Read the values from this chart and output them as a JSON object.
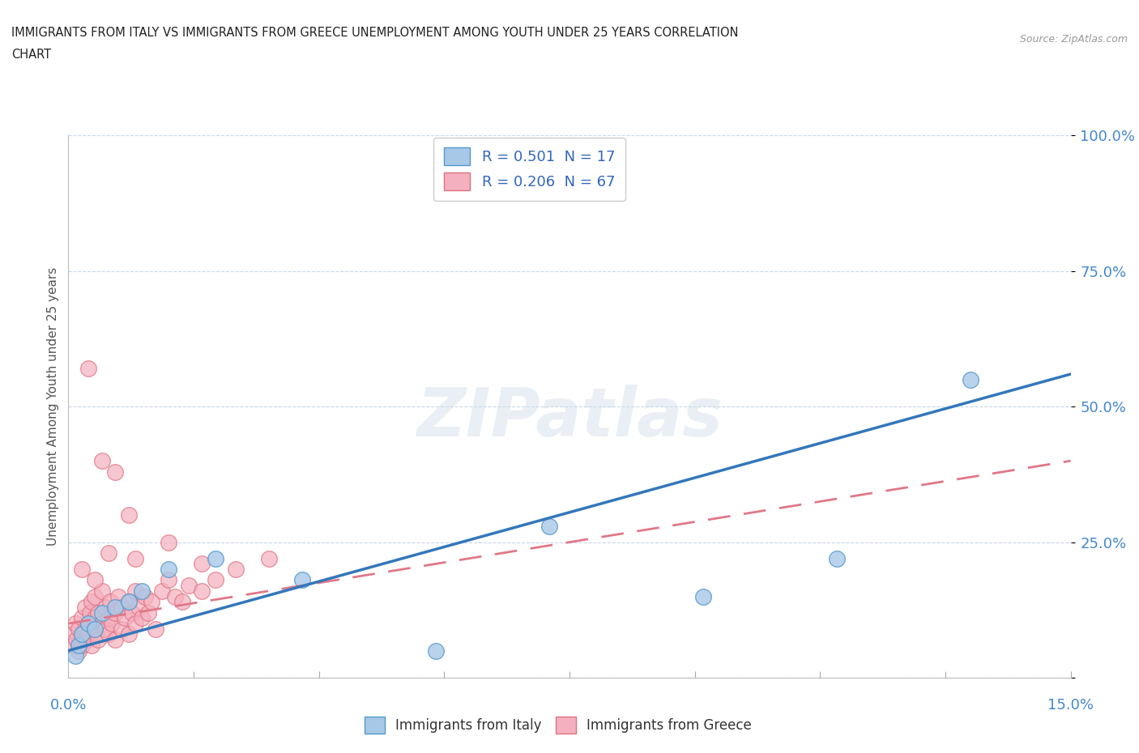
{
  "title_line1": "IMMIGRANTS FROM ITALY VS IMMIGRANTS FROM GREECE UNEMPLOYMENT AMONG YOUTH UNDER 25 YEARS CORRELATION",
  "title_line2": "CHART",
  "source": "Source: ZipAtlas.com",
  "ylabel": "Unemployment Among Youth under 25 years",
  "xlim": [
    0.0,
    15.0
  ],
  "ylim": [
    0.0,
    100.0
  ],
  "yticks": [
    0,
    25,
    50,
    75,
    100
  ],
  "ytick_labels": [
    "",
    "25.0%",
    "50.0%",
    "75.0%",
    "100.0%"
  ],
  "italy_color": "#a8c8e8",
  "greece_color": "#f4b0be",
  "italy_edge_color": "#5599cc",
  "greece_edge_color": "#e07080",
  "italy_line_color": "#3377bb",
  "greece_line_color": "#e07888",
  "legend_italy_label": "R = 0.501  N = 17",
  "legend_greece_label": "R = 0.206  N = 67",
  "watermark": "ZIPatlas",
  "background_color": "#ffffff",
  "italy_x": [
    0.1,
    0.15,
    0.2,
    0.3,
    0.4,
    0.5,
    0.7,
    0.9,
    1.1,
    1.5,
    2.2,
    3.5,
    5.5,
    7.2,
    9.5,
    11.5,
    13.5
  ],
  "italy_y": [
    4,
    6,
    8,
    10,
    9,
    12,
    13,
    14,
    16,
    20,
    22,
    18,
    5,
    28,
    15,
    22,
    55
  ],
  "greece_x": [
    0.05,
    0.08,
    0.1,
    0.12,
    0.15,
    0.15,
    0.2,
    0.2,
    0.22,
    0.25,
    0.25,
    0.28,
    0.3,
    0.3,
    0.32,
    0.35,
    0.35,
    0.38,
    0.4,
    0.4,
    0.42,
    0.45,
    0.45,
    0.5,
    0.5,
    0.55,
    0.55,
    0.6,
    0.6,
    0.62,
    0.65,
    0.7,
    0.7,
    0.75,
    0.8,
    0.8,
    0.85,
    0.9,
    0.9,
    0.95,
    1.0,
    1.0,
    1.05,
    1.1,
    1.15,
    1.2,
    1.25,
    1.3,
    1.4,
    1.5,
    1.6,
    1.7,
    1.8,
    2.0,
    2.2,
    2.5,
    0.3,
    0.5,
    0.7,
    0.9,
    1.0,
    1.5,
    2.0,
    3.0,
    0.2,
    0.4,
    0.6
  ],
  "greece_y": [
    8,
    6,
    10,
    7,
    9,
    5,
    6,
    11,
    8,
    9,
    13,
    7,
    10,
    8,
    12,
    6,
    14,
    9,
    11,
    15,
    8,
    12,
    7,
    10,
    16,
    9,
    13,
    11,
    8,
    14,
    10,
    12,
    7,
    15,
    9,
    13,
    11,
    14,
    8,
    12,
    10,
    16,
    13,
    11,
    15,
    12,
    14,
    9,
    16,
    18,
    15,
    14,
    17,
    16,
    18,
    20,
    57,
    40,
    38,
    30,
    22,
    25,
    21,
    22,
    20,
    18,
    23
  ],
  "italy_trendline_x": [
    0,
    15
  ],
  "italy_trendline_y": [
    5,
    56
  ],
  "greece_trendline_x": [
    0,
    15
  ],
  "greece_trendline_y": [
    10,
    40
  ]
}
